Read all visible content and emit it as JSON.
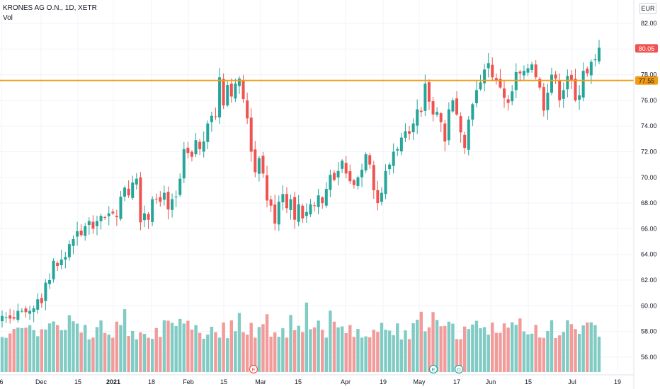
{
  "header": {
    "symbol": "KRONES AG O.N., 1D, XETR",
    "volume_label": "Vol",
    "currency": "EUR"
  },
  "colors": {
    "up": "#26a69a",
    "down": "#ef5350",
    "vol_up": "#80cbc4",
    "vol_down": "#f19b9a",
    "level": "#f39c12"
  },
  "chart_data": {
    "type": "candlestick",
    "price_axis": {
      "ylim": [
        55,
        83
      ],
      "ticks": [
        "82.00",
        "80.00",
        "78.00",
        "76.00",
        "74.00",
        "72.00",
        "70.00",
        "68.00",
        "66.00",
        "64.00",
        "62.00",
        "60.00",
        "58.00",
        "56.00"
      ]
    },
    "time_axis": {
      "labels": [
        "6",
        "Dec",
        "15",
        "2021",
        "18",
        "Feb",
        "15",
        "Mar",
        "15",
        "Apr",
        "19",
        "May",
        "17",
        "Jun",
        "15",
        "Jul",
        "19"
      ]
    },
    "horizontal_level": {
      "value": 77.55,
      "label": "77.55"
    },
    "last_price": {
      "value": 80.05,
      "label": "80.05"
    },
    "event_markers": [
      {
        "label": "E",
        "color": "#ef5350"
      },
      {
        "label": "E",
        "color": "#26a69a"
      },
      {
        "label": "D",
        "color": "#26a69a"
      }
    ],
    "close_series": [
      59.2,
      59.1,
      59.0,
      59.0,
      59.6,
      59.6,
      59.5,
      59.6,
      59.8,
      60.5,
      60.2,
      61.8,
      62.0,
      63.5,
      63.1,
      63.6,
      63.8,
      64.8,
      65.2,
      65.8,
      65.5,
      66.2,
      66.6,
      66.0,
      66.6,
      67.0,
      66.9,
      67.2,
      67.2,
      66.9,
      68.5,
      69.2,
      68.6,
      69.6,
      69.9,
      66.5,
      67.2,
      66.7,
      68.3,
      68.3,
      68.1,
      68.8,
      67.5,
      68.3,
      68.5,
      69.9,
      72.2,
      71.9,
      71.6,
      72.9,
      72.2,
      72.8,
      74.2,
      74.8,
      74.7,
      77.8,
      75.6,
      77.2,
      76.3,
      77.3,
      77.7,
      76.1,
      74.6,
      72.0,
      70.4,
      71.5,
      70.3,
      68.2,
      67.8,
      66.4,
      68.1,
      68.7,
      67.6,
      68.3,
      66.7,
      67.9,
      66.8,
      67.3,
      67.9,
      67.8,
      68.6,
      68.0,
      69.1,
      70.2,
      69.8,
      70.5,
      71.3,
      70.3,
      69.7,
      69.4,
      70.0,
      70.6,
      71.8,
      71.0,
      69.0,
      68.0,
      68.8,
      70.5,
      71.0,
      72.0,
      72.2,
      73.1,
      73.6,
      73.4,
      74.2,
      75.3,
      75.1,
      77.3,
      75.9,
      74.9,
      75.1,
      74.3,
      72.8,
      75.3,
      76.0,
      74.9,
      73.5,
      72.3,
      74.5,
      75.7,
      76.8,
      77.4,
      78.4,
      78.9,
      77.8,
      77.5,
      77.0,
      76.2,
      75.8,
      76.7,
      78.2,
      78.1,
      78.3,
      78.5,
      78.8,
      77.8,
      77.0,
      75.2,
      76.6,
      78.0,
      77.7,
      76.0,
      76.8,
      77.9,
      77.6,
      76.0,
      76.4,
      78.3,
      78.1,
      79.0,
      79.2,
      80.1
    ],
    "volume_scale_note": "relative",
    "volume_series": [
      3,
      3,
      3,
      3,
      3,
      2,
      2,
      3,
      3,
      3,
      4,
      3,
      3,
      4,
      3,
      3,
      3,
      4,
      3,
      3,
      3,
      3,
      3,
      3,
      3,
      3,
      2,
      3,
      3,
      3,
      4,
      6,
      3,
      3,
      3,
      3,
      3,
      3,
      3,
      3,
      3,
      3,
      3,
      3,
      3,
      3,
      3,
      3,
      3,
      3,
      3,
      3,
      3,
      3,
      3,
      3,
      4,
      3,
      3,
      3,
      4,
      3,
      3,
      4,
      3,
      3,
      4,
      4,
      3,
      3,
      3,
      3,
      3,
      4,
      3,
      4,
      3,
      6,
      3,
      3,
      4,
      3,
      3,
      4,
      3,
      3,
      3,
      3,
      3,
      3,
      3,
      3,
      3,
      3,
      3,
      3,
      3,
      3,
      3,
      3,
      3,
      3,
      4,
      3,
      3,
      3,
      4,
      3,
      3,
      6,
      4,
      3,
      4,
      3,
      3,
      3,
      3,
      3,
      4,
      3,
      3,
      4,
      3,
      3,
      3,
      3,
      3,
      3,
      3,
      3,
      3,
      3,
      3,
      3,
      3,
      3,
      3,
      3,
      3,
      3,
      3,
      3,
      3,
      3,
      3,
      4,
      3,
      3,
      3,
      3,
      3,
      3,
      3,
      3,
      3,
      3,
      3
    ]
  }
}
